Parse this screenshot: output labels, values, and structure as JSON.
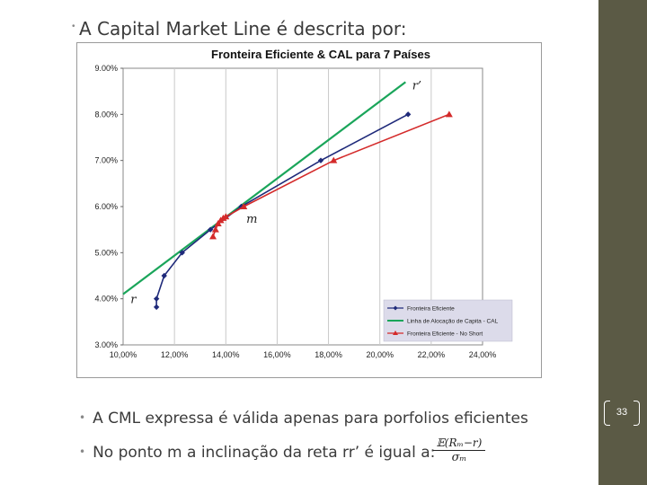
{
  "slide": {
    "title": "A Capital Market Line é descrita por:",
    "bullets": [
      {
        "text": "A CML expressa é válida apenas para porfolios eficientes"
      },
      {
        "text": "No ponto m a inclinação da reta rr’ é igual a:"
      }
    ],
    "formula": {
      "numerator": "𝔼(Rₘ−r)",
      "denominator": "σₘ"
    },
    "page_number": "33",
    "colors": {
      "side_panel": "#5b5a45"
    }
  },
  "chart_data": {
    "type": "line",
    "title": "Fronteira Eficiente  & CAL para 7 Países",
    "xlim": [
      0.1,
      0.24
    ],
    "ylim": [
      0.03,
      0.09
    ],
    "x_ticks": [
      "10,00%",
      "12,00%",
      "14,00%",
      "16,00%",
      "18,00%",
      "20,00%",
      "22,00%",
      "24,00%"
    ],
    "y_ticks": [
      "3.00%",
      "4.00%",
      "5.00%",
      "6.00%",
      "7.00%",
      "8.00%",
      "9.00%"
    ],
    "grid": "vertical",
    "legend_position": "bottom-right",
    "series": [
      {
        "name": "Fronteira Eficiente",
        "color": "#1f2a7a",
        "marker": "diamond",
        "x": [
          0.113,
          0.113,
          0.116,
          0.123,
          0.134,
          0.146,
          0.177,
          0.211
        ],
        "y": [
          0.0382,
          0.04,
          0.045,
          0.05,
          0.055,
          0.06,
          0.07,
          0.08
        ]
      },
      {
        "name": "Linha de Alocação de Capita - CAL",
        "color": "#1aa55a",
        "marker": "none",
        "x": [
          0.1,
          0.21
        ],
        "y": [
          0.041,
          0.087
        ]
      },
      {
        "name": "Fronteira Eficiente - No Short",
        "color": "#d42a2a",
        "marker": "triangle",
        "x": [
          0.135,
          0.136,
          0.137,
          0.138,
          0.139,
          0.14,
          0.147,
          0.182,
          0.227
        ],
        "y": [
          0.0535,
          0.055,
          0.0563,
          0.057,
          0.0575,
          0.0578,
          0.06,
          0.07,
          0.08
        ]
      }
    ],
    "annotations": [
      {
        "text": "r’",
        "x": 0.2112,
        "y": 0.0862
      },
      {
        "text": "m",
        "x": 0.1466,
        "y": 0.0573
      },
      {
        "text": "r",
        "x": 0.1015,
        "y": 0.0398
      }
    ]
  }
}
